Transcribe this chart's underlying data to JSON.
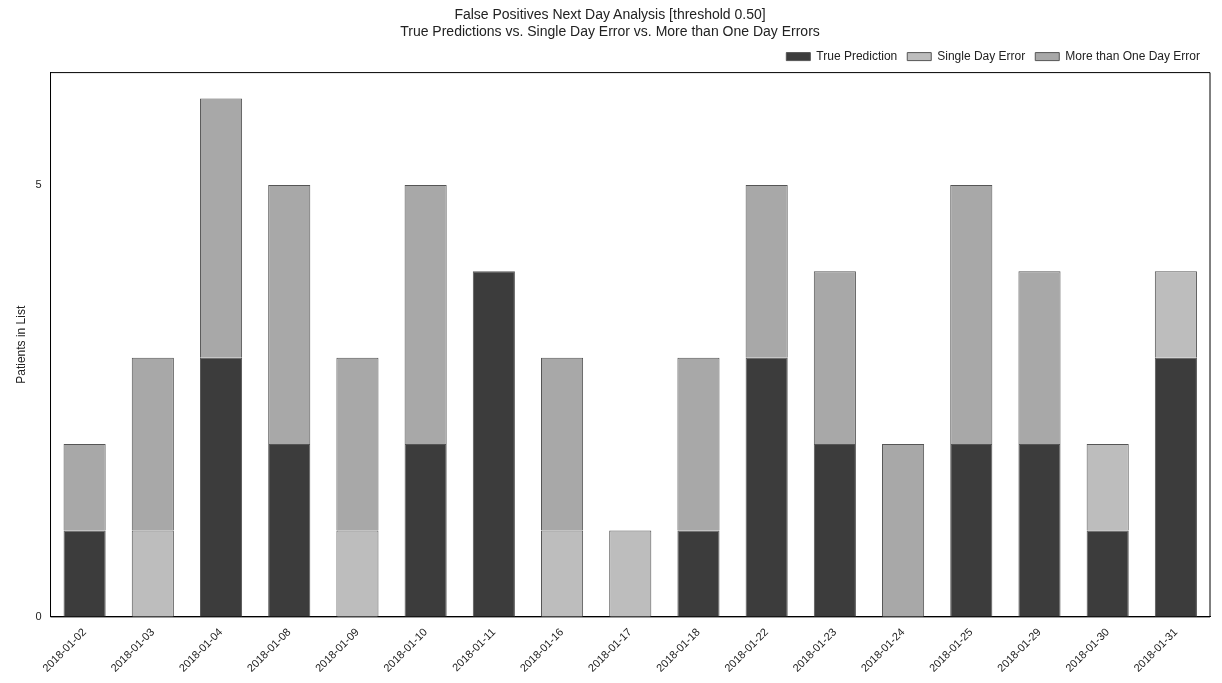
{
  "chart_data": {
    "type": "bar",
    "title": "False Positives Next Day Analysis [threshold 0.50]",
    "subtitle": "True Predictions vs. Single Day Error vs. More than One Day Errors",
    "ylabel": "Patients in List",
    "stacked": true,
    "legend": "top right",
    "grid": false,
    "categories": [
      "2018-01-02",
      "2018-01-03",
      "2018-01-04",
      "2018-01-08",
      "2018-01-09",
      "2018-01-10",
      "2018-01-11",
      "2018-01-16",
      "2018-01-17",
      "2018-01-18",
      "2018-01-22",
      "2018-01-23",
      "2018-01-24",
      "2018-01-25",
      "2018-01-29",
      "2018-01-30",
      "2018-01-31"
    ],
    "series": [
      {
        "name": "True Prediction",
        "color": "#3c3c3c",
        "values": [
          1,
          0,
          3,
          2,
          0,
          2,
          4,
          0,
          0,
          1,
          3,
          2,
          0,
          2,
          2,
          1,
          3
        ]
      },
      {
        "name": "Single Day Error",
        "color": "#bdbdbd",
        "values": [
          0,
          1,
          0,
          0,
          1,
          0,
          0,
          1,
          1,
          0,
          0,
          0,
          0,
          0,
          0,
          1,
          1
        ]
      },
      {
        "name": "More than One Day Error",
        "color": "#a8a8a8",
        "values": [
          1,
          2,
          3,
          3,
          2,
          3,
          0,
          2,
          0,
          2,
          2,
          2,
          2,
          3,
          2,
          0,
          0
        ]
      }
    ],
    "ylim": [
      0,
      6.3
    ],
    "yticks": [
      0,
      5
    ]
  }
}
